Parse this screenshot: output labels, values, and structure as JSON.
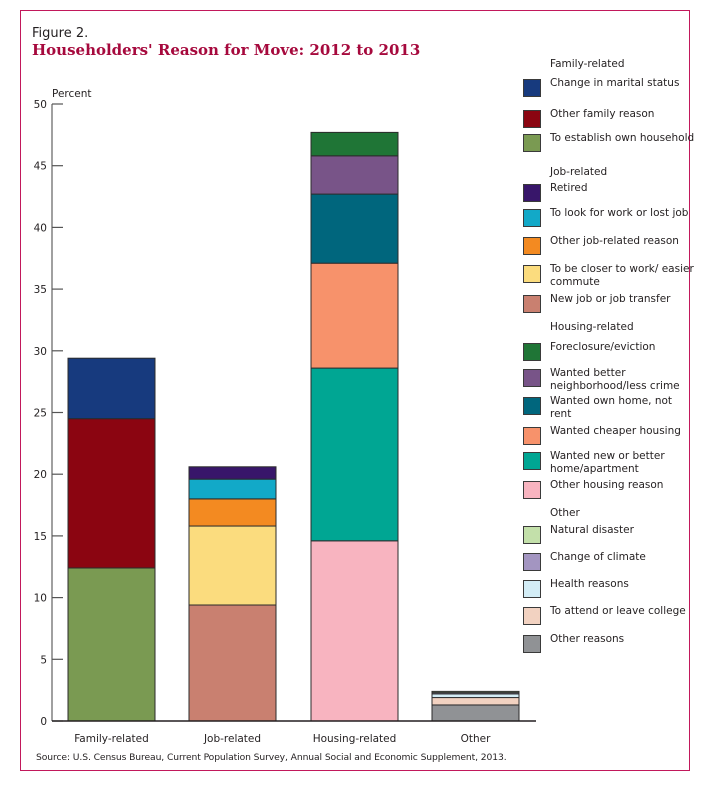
{
  "figure_label": "Figure 2.",
  "title": "Householders' Reason for Move: 2012 to 2013",
  "source": "Source: U.S. Census Bureau, Current Population Survey, Annual Social and Economic Supplement, 2013.",
  "colors": {
    "frame": "#c2185b",
    "title": "#a6093d"
  },
  "legend": {
    "groups": [
      {
        "heading": "Family-related",
        "items": [
          {
            "label": "Change in marital status",
            "color": "#173a7e"
          },
          {
            "label": "Other family reason",
            "color": "#8b0511"
          },
          {
            "label": "To establish own household",
            "color": "#7a9a52"
          }
        ]
      },
      {
        "heading": "Job-related",
        "items": [
          {
            "label": "Retired",
            "color": "#38166a"
          },
          {
            "label": "To look for work or lost job",
            "color": "#12a9c8"
          },
          {
            "label": "Other job-related reason",
            "color": "#f38a21"
          },
          {
            "label": "To be closer to work/ easier commute",
            "color": "#fbdc7e"
          },
          {
            "label": "New job or job transfer",
            "color": "#c98070"
          }
        ]
      },
      {
        "heading": "Housing-related",
        "items": [
          {
            "label": "Foreclosure/eviction",
            "color": "#1f7536"
          },
          {
            "label": "Wanted better neighborhood/less crime",
            "color": "#785488"
          },
          {
            "label": "Wanted own home, not rent",
            "color": "#00667d"
          },
          {
            "label": "Wanted cheaper housing",
            "color": "#f7926b"
          },
          {
            "label": "Wanted new or better home/apartment",
            "color": "#00a693"
          },
          {
            "label": "Other housing reason",
            "color": "#f8b4c0"
          }
        ]
      },
      {
        "heading": "Other",
        "items": [
          {
            "label": "Natural disaster",
            "color": "#c3e0aa"
          },
          {
            "label": "Change of climate",
            "color": "#a395c1"
          },
          {
            "label": "Health reasons",
            "color": "#d3edf6"
          },
          {
            "label": "To attend or leave college",
            "color": "#f2d2c1"
          },
          {
            "label": "Other reasons",
            "color": "#909295"
          }
        ]
      }
    ]
  },
  "chart_data": {
    "type": "bar",
    "stacked": true,
    "title": "Householders' Reason for Move: 2012 to 2013",
    "xlabel": "",
    "ylabel": "Percent",
    "ylim": [
      0,
      50
    ],
    "yticks": [
      0,
      5,
      10,
      15,
      20,
      25,
      30,
      35,
      40,
      45,
      50
    ],
    "categories": [
      "Family-related",
      "Job-related",
      "Housing-related",
      "Other"
    ],
    "grid": false,
    "legend_position": "right",
    "stacks": [
      {
        "category": "Family-related",
        "segments": [
          {
            "name": "To establish own household",
            "value": 12.4,
            "color": "#7a9a52"
          },
          {
            "name": "Other family reason",
            "value": 12.1,
            "color": "#8b0511"
          },
          {
            "name": "Change in marital status",
            "value": 4.9,
            "color": "#173a7e"
          }
        ]
      },
      {
        "category": "Job-related",
        "segments": [
          {
            "name": "New job or job transfer",
            "value": 9.4,
            "color": "#c98070"
          },
          {
            "name": "To be closer to work/easier commute",
            "value": 6.4,
            "color": "#fbdc7e"
          },
          {
            "name": "Other job-related reason",
            "value": 2.2,
            "color": "#f38a21"
          },
          {
            "name": "To look for work or lost job",
            "value": 1.6,
            "color": "#12a9c8"
          },
          {
            "name": "Retired",
            "value": 1.0,
            "color": "#38166a"
          }
        ]
      },
      {
        "category": "Housing-related",
        "segments": [
          {
            "name": "Other housing reason",
            "value": 14.6,
            "color": "#f8b4c0"
          },
          {
            "name": "Wanted new or better home/apartment",
            "value": 14.0,
            "color": "#00a693"
          },
          {
            "name": "Wanted cheaper housing",
            "value": 8.5,
            "color": "#f7926b"
          },
          {
            "name": "Wanted own home, not rent",
            "value": 5.6,
            "color": "#00667d"
          },
          {
            "name": "Wanted better neighborhood/less crime",
            "value": 3.1,
            "color": "#785488"
          },
          {
            "name": "Foreclosure/eviction",
            "value": 1.9,
            "color": "#1f7536"
          }
        ]
      },
      {
        "category": "Other",
        "segments": [
          {
            "name": "Other reasons",
            "value": 1.3,
            "color": "#909295"
          },
          {
            "name": "To attend or leave college",
            "value": 0.6,
            "color": "#f2d2c1"
          },
          {
            "name": "Health reasons",
            "value": 0.3,
            "color": "#d3edf6"
          },
          {
            "name": "Change of climate",
            "value": 0.1,
            "color": "#a395c1"
          },
          {
            "name": "Natural disaster",
            "value": 0.1,
            "color": "#c3e0aa"
          }
        ]
      }
    ]
  }
}
